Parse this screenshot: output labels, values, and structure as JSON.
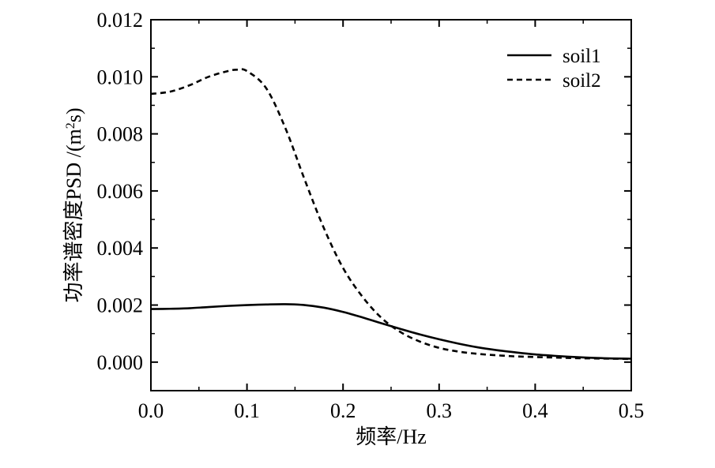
{
  "chart_data": {
    "type": "line",
    "xlabel": "频率/Hz",
    "ylabel_main": "功率谱密度PSD /(m",
    "ylabel_sup": "2",
    "ylabel_end": "s)",
    "xlim": [
      0.0,
      0.5
    ],
    "ylim": [
      -0.001,
      0.012
    ],
    "xticks": [
      "0.0",
      "0.1",
      "0.2",
      "0.3",
      "0.4",
      "0.5"
    ],
    "yticks": [
      "0.000",
      "0.002",
      "0.004",
      "0.006",
      "0.008",
      "0.010",
      "0.012"
    ],
    "grid": false,
    "legend_position": "top-right",
    "series": [
      {
        "name": "soil1",
        "line_style": "solid",
        "color": "#000000",
        "x": [
          0.0,
          0.02,
          0.04,
          0.06,
          0.08,
          0.1,
          0.12,
          0.14,
          0.16,
          0.18,
          0.2,
          0.22,
          0.24,
          0.26,
          0.28,
          0.3,
          0.32,
          0.34,
          0.36,
          0.38,
          0.4,
          0.42,
          0.44,
          0.46,
          0.48,
          0.5
        ],
        "values": [
          0.00186,
          0.00187,
          0.00189,
          0.00193,
          0.00197,
          0.002,
          0.00202,
          0.00203,
          0.002,
          0.00191,
          0.00176,
          0.00157,
          0.00136,
          0.00116,
          0.00097,
          0.0008,
          0.00065,
          0.00052,
          0.00042,
          0.00034,
          0.00027,
          0.00022,
          0.00018,
          0.00015,
          0.00013,
          0.00012
        ]
      },
      {
        "name": "soil2",
        "line_style": "dashed",
        "color": "#000000",
        "x": [
          0.0,
          0.02,
          0.04,
          0.06,
          0.08,
          0.09,
          0.1,
          0.12,
          0.14,
          0.16,
          0.18,
          0.2,
          0.22,
          0.24,
          0.26,
          0.28,
          0.3,
          0.32,
          0.34,
          0.36,
          0.38,
          0.4,
          0.42,
          0.44,
          0.46,
          0.48,
          0.5
        ],
        "values": [
          0.0094,
          0.00948,
          0.0097,
          0.01,
          0.0102,
          0.01025,
          0.0102,
          0.0096,
          0.0082,
          0.0064,
          0.0047,
          0.0033,
          0.0023,
          0.00155,
          0.00105,
          0.00072,
          0.0005,
          0.00037,
          0.00029,
          0.00024,
          0.0002,
          0.00018,
          0.00016,
          0.00014,
          0.00013,
          0.00012,
          0.00011
        ]
      }
    ]
  }
}
